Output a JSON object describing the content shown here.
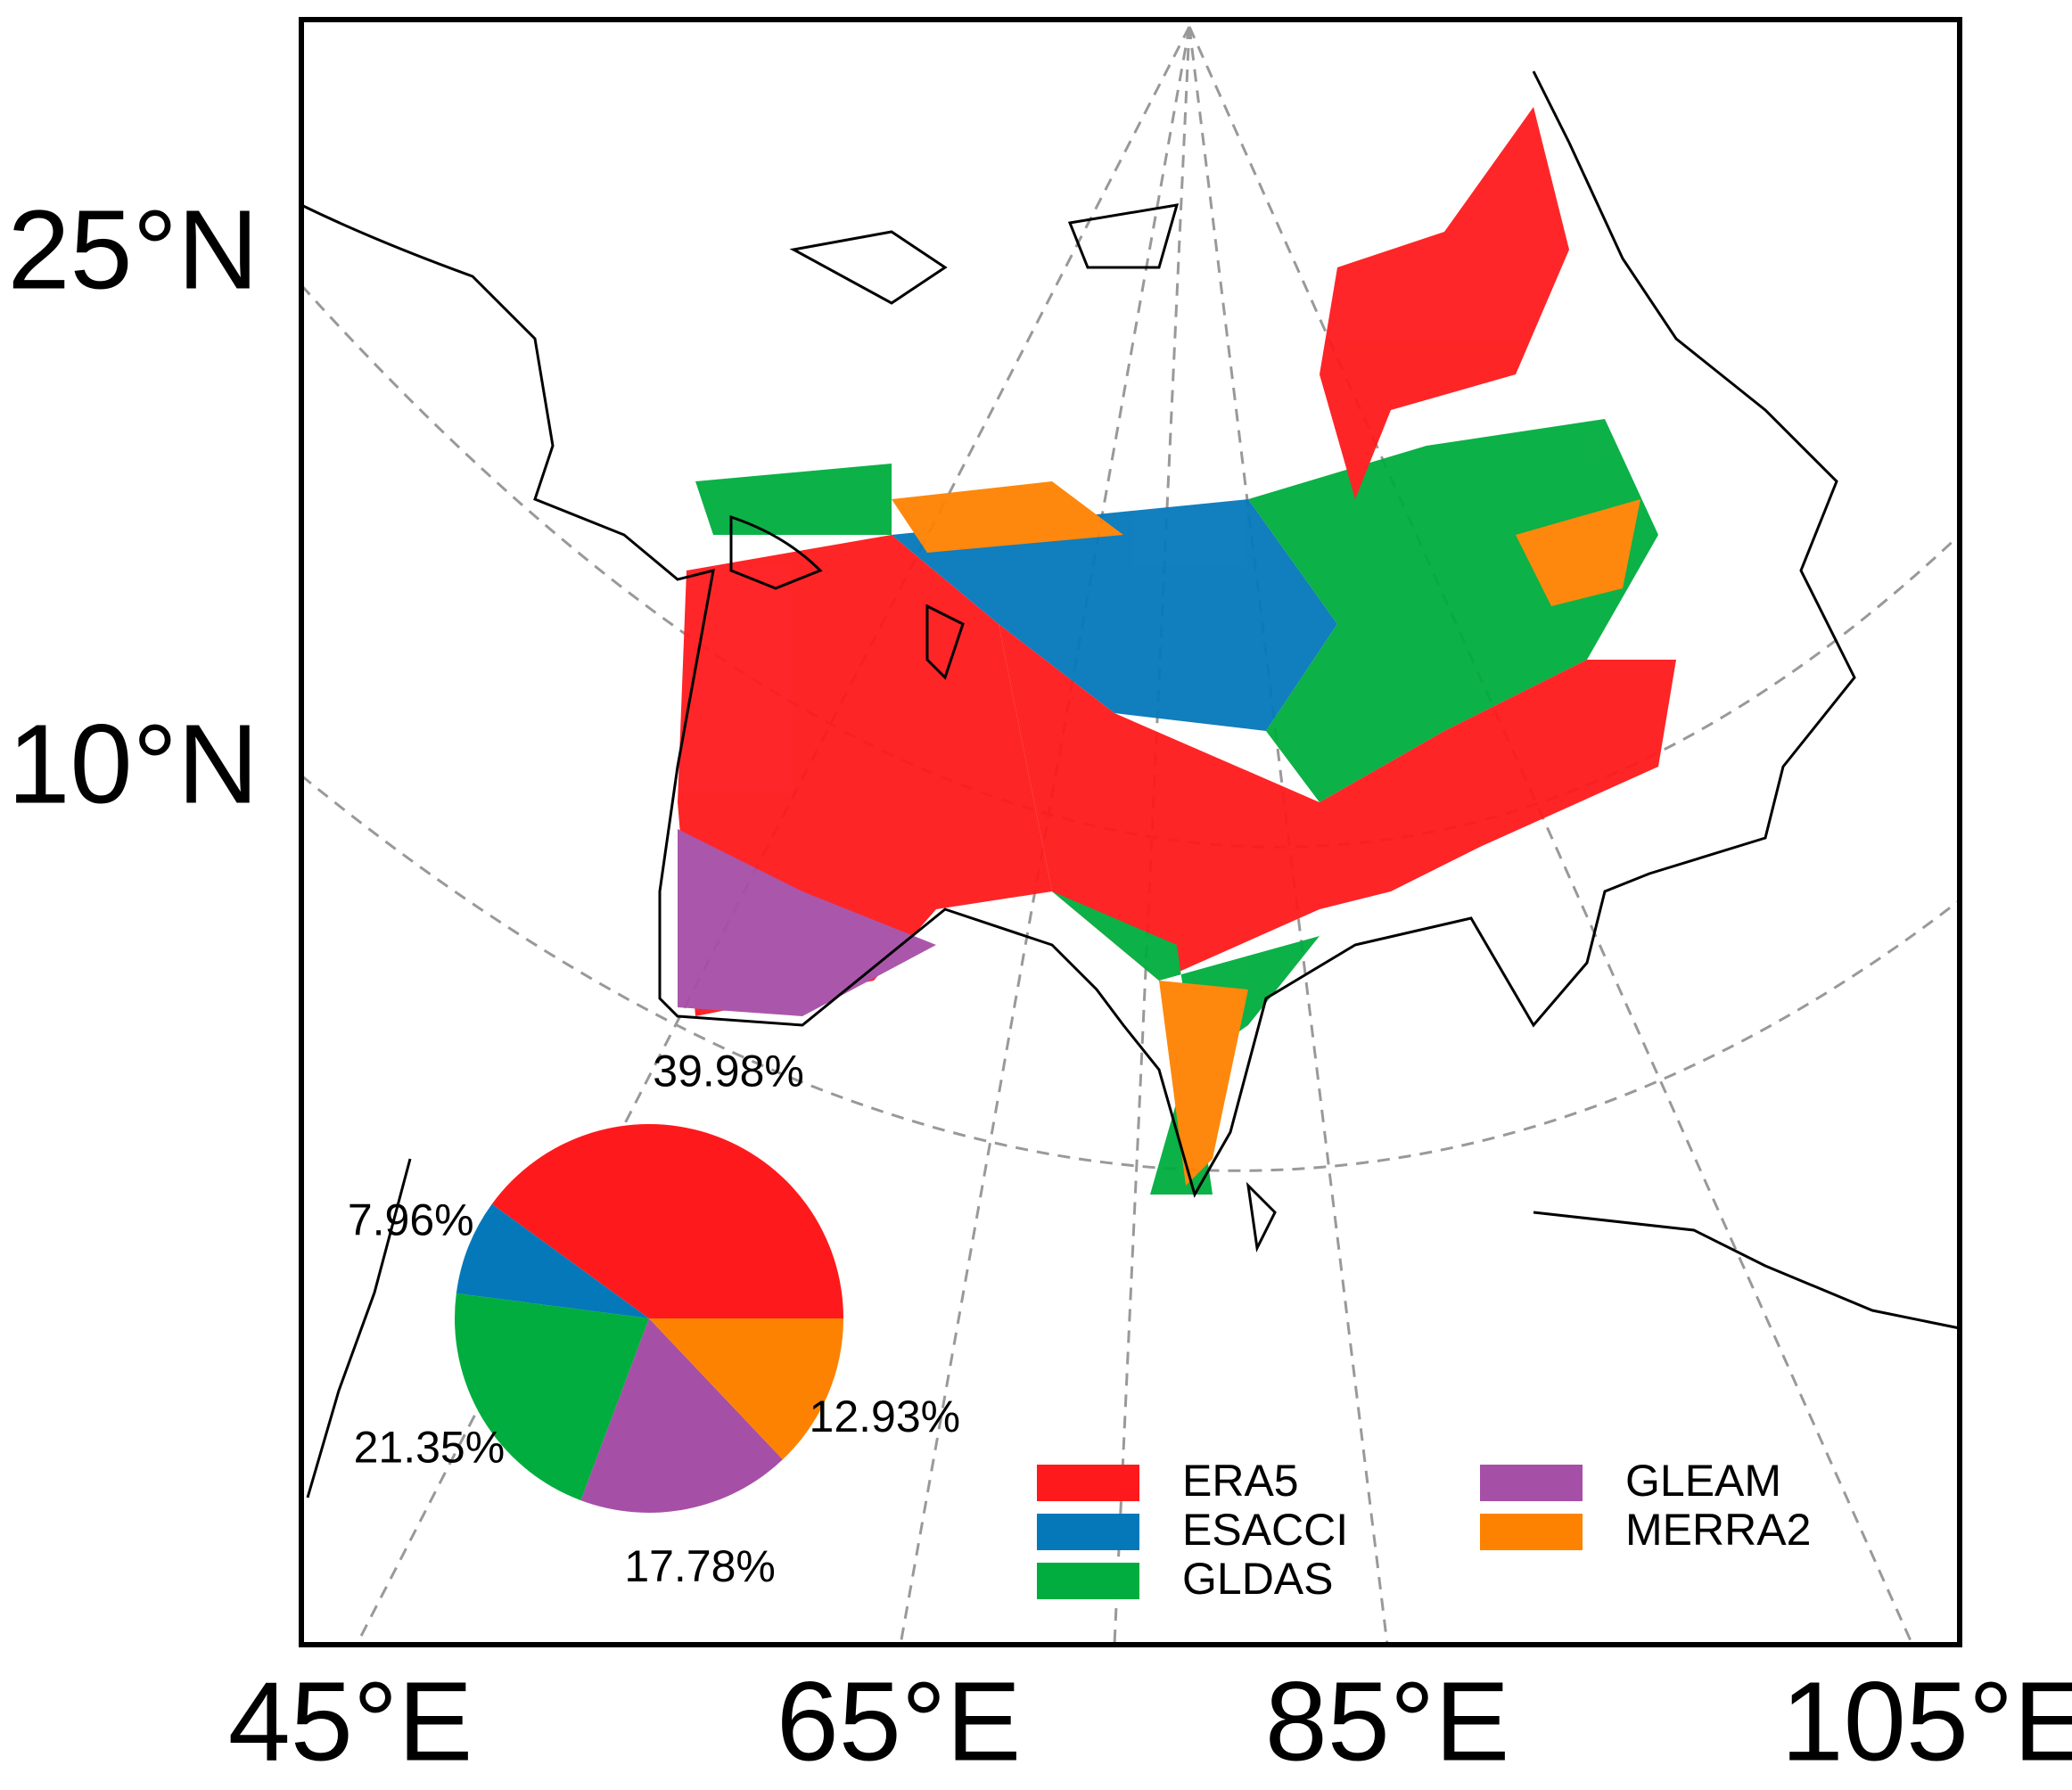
{
  "map": {
    "lat_labels": [
      "25°N",
      "10°N"
    ],
    "lon_labels": [
      "45°E",
      "65°E",
      "85°E",
      "105°E"
    ]
  },
  "chart_data": {
    "type": "pie",
    "categories": [
      "ERA5",
      "ESACCI",
      "GLDAS",
      "GLEAM",
      "MERRA2"
    ],
    "values": [
      39.98,
      7.96,
      21.35,
      17.78,
      12.93
    ],
    "value_labels": [
      "39.98%",
      "7.96%",
      "21.35%",
      "17.78%",
      "12.93%"
    ],
    "colors": [
      "#fe1a1c",
      "#0578ba",
      "#00ad3e",
      "#a64fa7",
      "#fe8201"
    ]
  }
}
